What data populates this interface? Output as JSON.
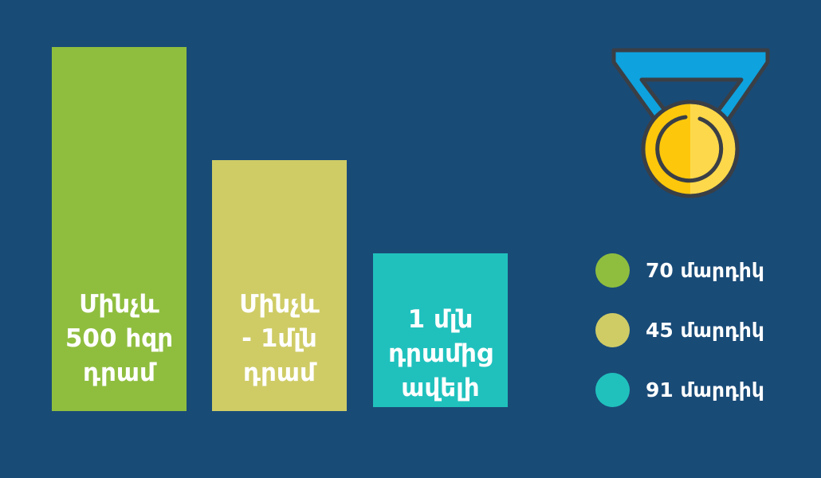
{
  "chart_data": {
    "type": "bar",
    "categories": [
      "Մինչև\n500 հզր\nդրամ",
      "Մինչև\n- 1մլն\nդրամ",
      "1 մլն\nդրամից\nավելի"
    ],
    "values": [
      70,
      45,
      91
    ],
    "colors": [
      "#8fbe3f",
      "#cfcc66",
      "#20c1bd"
    ],
    "legend": [
      "70 մարդիկ",
      "45 մարդիկ",
      "91 մարդիկ"
    ],
    "legend_placement": "right",
    "grid": false
  },
  "icon": "medal-icon",
  "background": "#194b77"
}
